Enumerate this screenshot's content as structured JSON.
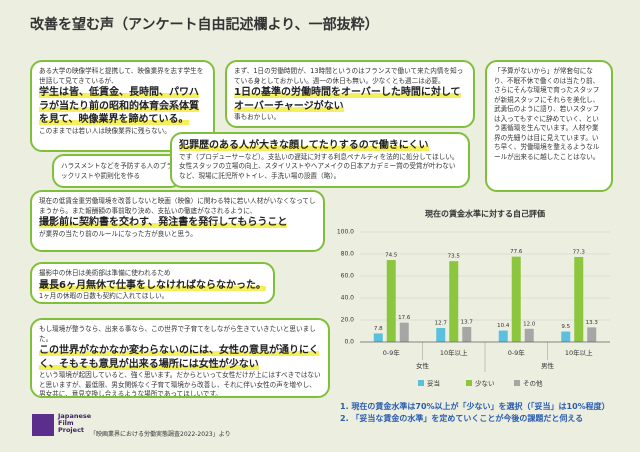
{
  "header": {
    "title": "改善を望む声（アンケート自由記述欄より、一部抜粋）"
  },
  "bubbles": [
    {
      "segments": [
        {
          "text": "ある大学の映像学科と提携して、映像業界を志す学生を世話して見てきているが、",
          "emphasis": false
        },
        {
          "text": "学生は皆、低賃金、長時間、パワハラが当たり前の昭和的体育会系体質を見て、映像業界を諦めている。",
          "emphasis": true
        },
        {
          "text": "このままでは若い人は映像業界に残らない。",
          "emphasis": false
        }
      ]
    },
    {
      "segments": [
        {
          "text": "まず、1日の労働時間が、13時間というのはフランスで働いて来た内情を知っている身としておかしい。週一の休日も無い。少なくとも週二は必要。",
          "emphasis": false
        },
        {
          "text": "1日の基準の労働時間をオーバーした時間に対してオーバーチャージがない",
          "emphasis": true
        },
        {
          "text": "事もおかしい。",
          "emphasis": false
        }
      ]
    },
    {
      "segments": [
        {
          "text": "「予算がないから」が常套句になり、不眠不休で働くのは当たり前、さらにそんな環境で育ったスタッフが新規スタッフにそれらを美化し、武勇伝のように語り、若いスタッフは入ってもすぐに辞めていく、という悪循環を生んでいます。人材や業界の先細りは目に見えています。いち早く、労働環境を整えるようなルールが出来るに越したことはない。",
          "emphasis": false
        }
      ]
    },
    {
      "segments": [
        {
          "text": "ハラスメントなどを予防する人のブラックリストや罰則化を作る",
          "emphasis": false
        }
      ]
    },
    {
      "segments": [
        {
          "text": "犯罪歴のある人が大きな顔してたりするので働きにくい",
          "emphasis": true
        },
        {
          "text": "です（プロデューサーなど）。支払いの遅延に対する利息ペナルティを法的に処分してほしい。女性スタッフの立場の向上、スタイリストやヘアメイクの日本アカデミー賞の受賞が叶わないなど、現場に託児所やトイレ、手洗い場の設置（略）。",
          "emphasis": false
        }
      ]
    },
    {
      "segments": [
        {
          "text": "現在の低賃金重労働環境を改善しないと映画（映像）に関わる特に若い人材がいなくなってしまうから。また報酬額の事前取り決め、支払いの徹底がなされるように、",
          "emphasis": false
        },
        {
          "text": "撮影前に契約書を交わす、発注書を発行してもらうこと",
          "emphasis": true
        },
        {
          "text": "が業界の当たり前のルールになった方が良いと思う。",
          "emphasis": false
        }
      ]
    },
    {
      "segments": [
        {
          "text": "撮影中の休日は美術部は準備に使われるため",
          "emphasis": false
        },
        {
          "text": "最長6ヶ月無休で仕事をしなければならなかった。",
          "emphasis": true
        },
        {
          "text": "1ヶ月の休暇の日数も契約に入れてほしい。",
          "emphasis": false
        }
      ]
    },
    {
      "segments": [
        {
          "text": "もし環境が整うなら、出来る事なら、この世界で子育てをしながら生きていきたいと思いました。",
          "emphasis": false
        },
        {
          "text": "この世界がなかなか変わらないのには、女性の意見が通りにくく、そもそも意見が出来る場所には女性が少ない",
          "emphasis": true
        },
        {
          "text": "という環境が起因していると、強く思います。だからといって女性だけが上にはすべきではないと思いますが、最低限、男女関係なく子育て環境から改善し、それに伴い女性の声を増やし、男女共に、意見交換し合えるような場所であってほしいです。",
          "emphasis": false
        }
      ]
    }
  ],
  "chart_data": {
    "type": "bar",
    "title": "現在の賃金水準に対する自己評価",
    "categories": [
      "0-9年",
      "10年以上",
      "0-9年",
      "10年以上"
    ],
    "group_labels": [
      "女性",
      "男性"
    ],
    "series": [
      {
        "name": "妥当",
        "color": "#5bc0de",
        "values": [
          7.8,
          12.7,
          10.4,
          9.5
        ],
        "value_labels": [
          "7.8",
          "12.7",
          "10.4",
          "9.5"
        ]
      },
      {
        "name": "少ない",
        "color": "#8cc63f",
        "values": [
          74.5,
          73.5,
          77.6,
          77.3
        ],
        "value_labels": [
          "74.5",
          "73.5",
          "77.6",
          "77.3"
        ]
      },
      {
        "name": "その他",
        "color": "#a6a6a6",
        "values": [
          17.6,
          13.7,
          12.0,
          13.3
        ],
        "value_labels": [
          "17.6",
          "13.7",
          "12.0",
          "13.3"
        ]
      }
    ],
    "ylim": [
      0,
      100
    ],
    "yticks": [
      {
        "value": 0,
        "label": "0.0"
      },
      {
        "value": 20,
        "label": "20.0"
      },
      {
        "value": 40,
        "label": "40.0"
      },
      {
        "value": 60,
        "label": "60.0"
      },
      {
        "value": 80,
        "label": "80.0"
      },
      {
        "value": 100,
        "label": "100.0"
      }
    ],
    "grid": true
  },
  "notes": [
    "1. 現在の賃金水準は70%以上が「少ない」を選択（「妥当」は10%程度）",
    "2. 「妥当な賃金の水準」を定めていくことが今後の課題だと伺える"
  ],
  "footer": {
    "logo": "Japanese Film Project",
    "source": "「映画業界における労働実態調査2022-2023」より"
  }
}
